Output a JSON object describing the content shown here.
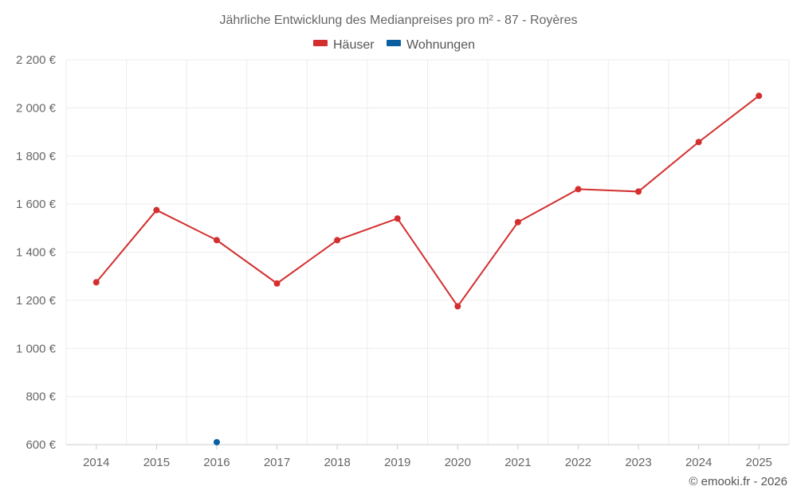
{
  "chart_data": {
    "type": "line",
    "title": "Jährliche Entwicklung des Medianpreises pro m² - 87 - Royères",
    "categories": [
      "2014",
      "2015",
      "2016",
      "2017",
      "2018",
      "2019",
      "2020",
      "2021",
      "2022",
      "2023",
      "2024",
      "2025"
    ],
    "series": [
      {
        "name": "Häuser",
        "color": "#d32f2f",
        "values": [
          1275,
          1575,
          1450,
          1270,
          1450,
          1540,
          1175,
          1525,
          1662,
          1652,
          1858,
          2050
        ]
      },
      {
        "name": "Wohnungen",
        "color": "#0a5fa3",
        "values": [
          null,
          null,
          610,
          null,
          null,
          null,
          null,
          null,
          null,
          null,
          null,
          null
        ]
      }
    ],
    "ylim": [
      600,
      2200
    ],
    "yticks": [
      600,
      800,
      1000,
      1200,
      1400,
      1600,
      1800,
      2000,
      2200
    ],
    "ytick_labels": [
      "600 €",
      "800 €",
      "1 000 €",
      "1 200 €",
      "1 400 €",
      "1 600 €",
      "1 800 €",
      "2 000 €",
      "2 200 €"
    ],
    "xlabel": "",
    "ylabel": "",
    "grid": true,
    "legend_position": "top-center"
  },
  "credit": "© emooki.fr - 2026"
}
